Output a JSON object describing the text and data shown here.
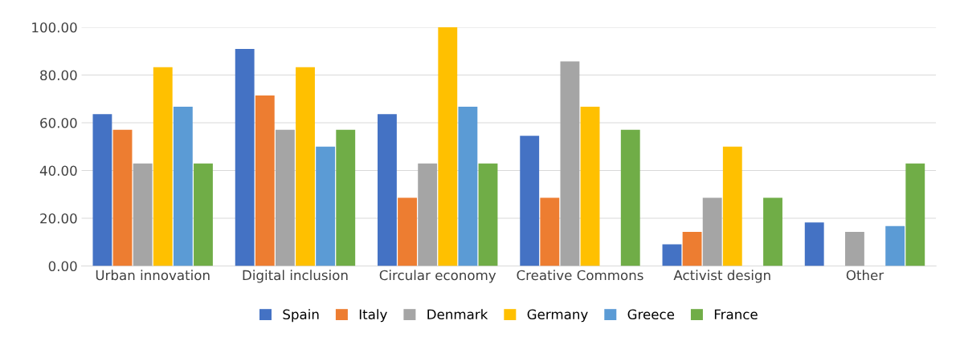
{
  "chart_data": {
    "type": "bar",
    "categories": [
      "Urban innovation",
      "Digital inclusion",
      "Circular economy",
      "Creative Commons",
      "Activist design",
      "Other"
    ],
    "series": [
      {
        "name": "Spain",
        "color": "#4472c4",
        "values": [
          63.6,
          90.9,
          63.6,
          54.5,
          9.1,
          18.2
        ]
      },
      {
        "name": "Italy",
        "color": "#ed7d31",
        "values": [
          57.1,
          71.4,
          28.6,
          28.6,
          14.3,
          0
        ]
      },
      {
        "name": "Denmark",
        "color": "#a5a5a5",
        "values": [
          42.9,
          57.1,
          42.9,
          85.7,
          28.6,
          14.3
        ]
      },
      {
        "name": "Germany",
        "color": "#ffc000",
        "values": [
          83.3,
          83.3,
          100,
          66.7,
          50,
          0
        ]
      },
      {
        "name": "Greece",
        "color": "#5b9bd5",
        "values": [
          66.7,
          50,
          66.7,
          0,
          0,
          16.7
        ]
      },
      {
        "name": "France",
        "color": "#70ad47",
        "values": [
          42.9,
          57.1,
          42.9,
          57.1,
          28.6,
          42.9
        ]
      }
    ],
    "ylim": [
      0,
      100
    ],
    "yticks": [
      {
        "value": 0,
        "label": "0.00"
      },
      {
        "value": 20,
        "label": "20.00"
      },
      {
        "value": 40,
        "label": "40.00"
      },
      {
        "value": 60,
        "label": "60.00"
      },
      {
        "value": 80,
        "label": "80.00"
      },
      {
        "value": 100,
        "label": "100.00"
      }
    ],
    "grid": "y",
    "legend": "bottom"
  }
}
